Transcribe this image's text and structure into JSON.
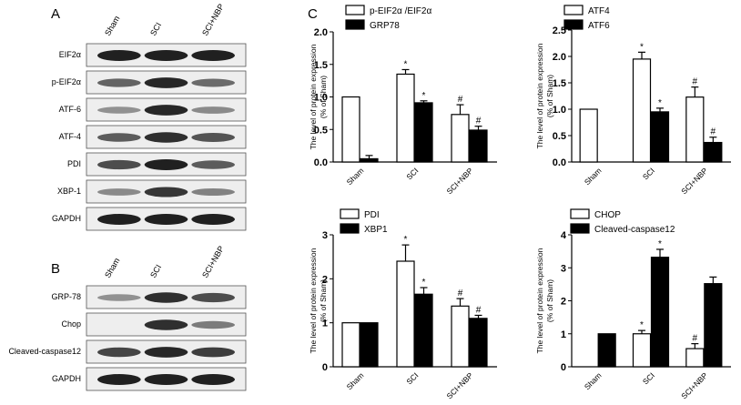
{
  "figure": {
    "panel_labels": [
      "A",
      "B",
      "C"
    ],
    "blot_groups": [
      "Sham",
      "SCI",
      "SCI+NBP"
    ],
    "blotA_rows": [
      "EIF2α",
      "p-EIF2α",
      "ATF-6",
      "ATF-4",
      "PDI",
      "XBP-1",
      "GAPDH"
    ],
    "blotB_rows": [
      "GRP-78",
      "Chop",
      "Cleaved-caspase12",
      "GAPDH"
    ],
    "colors": {
      "band": "#141414",
      "bar_open": "#ffffff",
      "bar_filled": "#000000"
    }
  },
  "chart_data": [
    {
      "type": "bar",
      "ylabel": "The level of protein expression\n(% of Sham)",
      "ylim": [
        0,
        2.0
      ],
      "yticks": [
        "0.0",
        "0.5",
        "1.0",
        "1.5",
        "2.0"
      ],
      "categories": [
        "Sham",
        "SCI",
        "SCI+NBP"
      ],
      "series": [
        {
          "name": "p-EIF2α /EIF2α",
          "values": [
            1.0,
            1.35,
            0.73
          ],
          "errors": [
            0,
            0.07,
            0.15
          ],
          "marks": [
            "",
            "*",
            "#"
          ]
        },
        {
          "name": "GRP78",
          "values": [
            0.05,
            0.91,
            0.49
          ],
          "errors": [
            0.05,
            0.03,
            0.06
          ],
          "marks": [
            "",
            "*",
            "#"
          ]
        }
      ],
      "legend": "top-left"
    },
    {
      "type": "bar",
      "ylabel": "The level of protein expression\n(% of Sham)",
      "ylim": [
        0,
        2.5
      ],
      "yticks": [
        "0.0",
        "0.5",
        "1.0",
        "1.5",
        "2.0",
        "2.5"
      ],
      "categories": [
        "Sham",
        "SCI",
        "SCI+NBP"
      ],
      "series": [
        {
          "name": "ATF4",
          "values": [
            1.0,
            1.95,
            1.23
          ],
          "errors": [
            0,
            0.13,
            0.19
          ],
          "marks": [
            "",
            "*",
            "#"
          ]
        },
        {
          "name": "ATF6",
          "values": [
            null,
            0.95,
            0.37
          ],
          "errors": [
            0,
            0.07,
            0.1
          ],
          "marks": [
            "",
            "*",
            "#"
          ]
        }
      ],
      "legend": "top-left"
    },
    {
      "type": "bar",
      "ylabel": "The level of protein expression\n(% of Sham)",
      "ylim": [
        0,
        3
      ],
      "yticks": [
        "0",
        "1",
        "2",
        "3"
      ],
      "categories": [
        "Sham",
        "SCI",
        "SCI+NBP"
      ],
      "series": [
        {
          "name": "PDI",
          "values": [
            1.0,
            2.4,
            1.38
          ],
          "errors": [
            0,
            0.37,
            0.17
          ],
          "marks": [
            "",
            "*",
            "#"
          ]
        },
        {
          "name": "XBP1",
          "values": [
            1.0,
            1.65,
            1.1
          ],
          "errors": [
            0,
            0.15,
            0.07
          ],
          "marks": [
            "",
            "*",
            "#"
          ]
        }
      ],
      "legend": "top-left"
    },
    {
      "type": "bar",
      "ylabel": "The level of protein expression\n(% of Sham)",
      "ylim": [
        0,
        4
      ],
      "yticks": [
        "0",
        "1",
        "2",
        "3",
        "4"
      ],
      "categories": [
        "Sham",
        "SCI",
        "SCI+NBP"
      ],
      "series": [
        {
          "name": "CHOP",
          "values": [
            null,
            1.0,
            0.55
          ],
          "errors": [
            0,
            0.1,
            0.15
          ],
          "marks": [
            "",
            "*",
            "#"
          ]
        },
        {
          "name": "Cleaved-caspase12",
          "values": [
            1.0,
            3.32,
            2.52
          ],
          "errors": [
            0,
            0.24,
            0.2
          ],
          "marks": [
            "",
            "*",
            ""
          ]
        }
      ],
      "legend": "top-left"
    }
  ]
}
